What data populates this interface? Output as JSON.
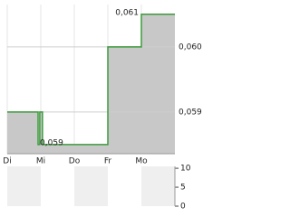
{
  "chart_data": [
    {
      "type": "step-area",
      "x": [
        0,
        0.92,
        0.97,
        1.05,
        3.0,
        4.0
      ],
      "values": [
        0.059,
        0.0585,
        0.059,
        0.0585,
        0.06,
        0.0605
      ],
      "color": "#3c9a3c",
      "fill": "#c8c8c8",
      "xlim": [
        0,
        5
      ],
      "xticks": [
        {
          "value": 0,
          "label": "Di"
        },
        {
          "value": 1,
          "label": "Mi"
        },
        {
          "value": 2,
          "label": "Do"
        },
        {
          "value": 3,
          "label": "Fr"
        },
        {
          "value": 4,
          "label": "Mo"
        }
      ],
      "ylim": [
        0.05836,
        0.06065
      ],
      "yticks": [
        {
          "value": 0.059,
          "label": "0,059"
        },
        {
          "value": 0.06,
          "label": "0,060"
        }
      ],
      "max_label": "0,061",
      "min_label": "0,059",
      "grid": true
    },
    {
      "type": "volume",
      "xlim": [
        0,
        5
      ],
      "ylim": [
        0,
        10.5
      ],
      "yticks": [
        0,
        5,
        10
      ]
    }
  ]
}
